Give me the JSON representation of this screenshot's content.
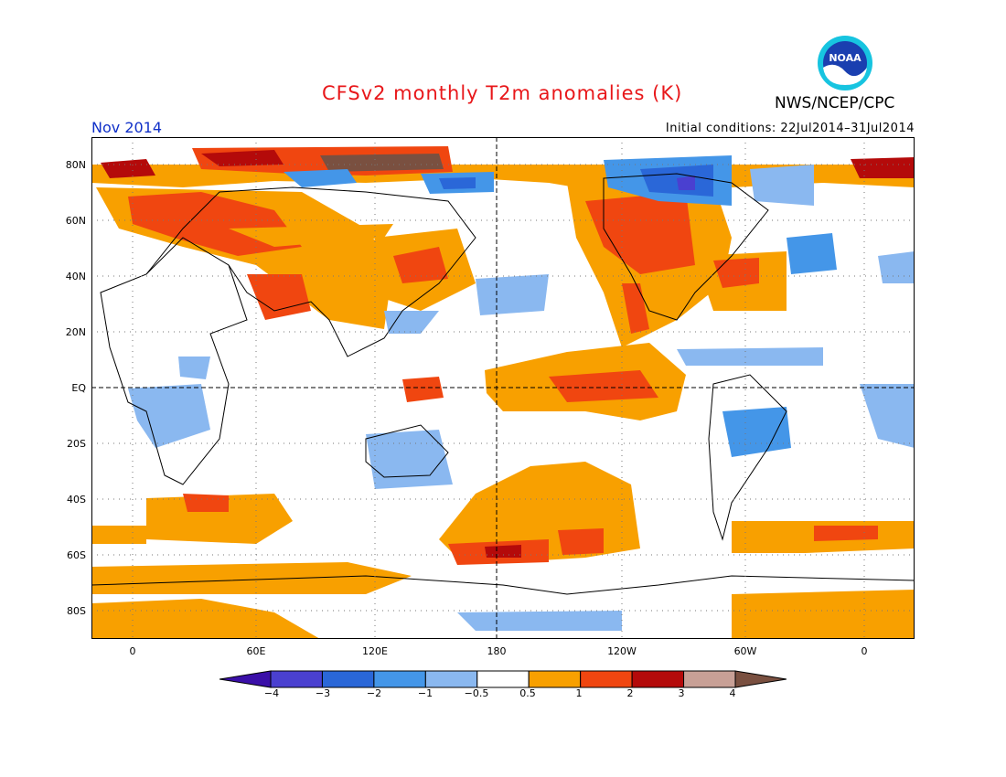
{
  "title": "CFSv2 monthly T2m anomalies (K)",
  "org_label": "NWS/NCEP/CPC",
  "logo_text": "NOAA",
  "valid_month": "Nov 2014",
  "init_conditions": "Initial conditions: 22Jul2014–31Jul2014",
  "map": {
    "lat_ticks": [
      "80N",
      "60N",
      "40N",
      "20N",
      "EQ",
      "20S",
      "40S",
      "60S",
      "80S"
    ],
    "lon_ticks": [
      "0",
      "60E",
      "120E",
      "180",
      "120W",
      "60W",
      "0"
    ]
  },
  "colorbar": {
    "labels": [
      "−4",
      "−3",
      "−2",
      "−1",
      "−0.5",
      "0.5",
      "1",
      "2",
      "3",
      "4"
    ],
    "colors": [
      "#3a0fa8",
      "#4a40d0",
      "#2a67d8",
      "#4496e8",
      "#8ab8f0",
      "#ffffff",
      "#f8a000",
      "#f04610",
      "#b40a0a",
      "#c8a096",
      "#7a5040"
    ]
  }
}
